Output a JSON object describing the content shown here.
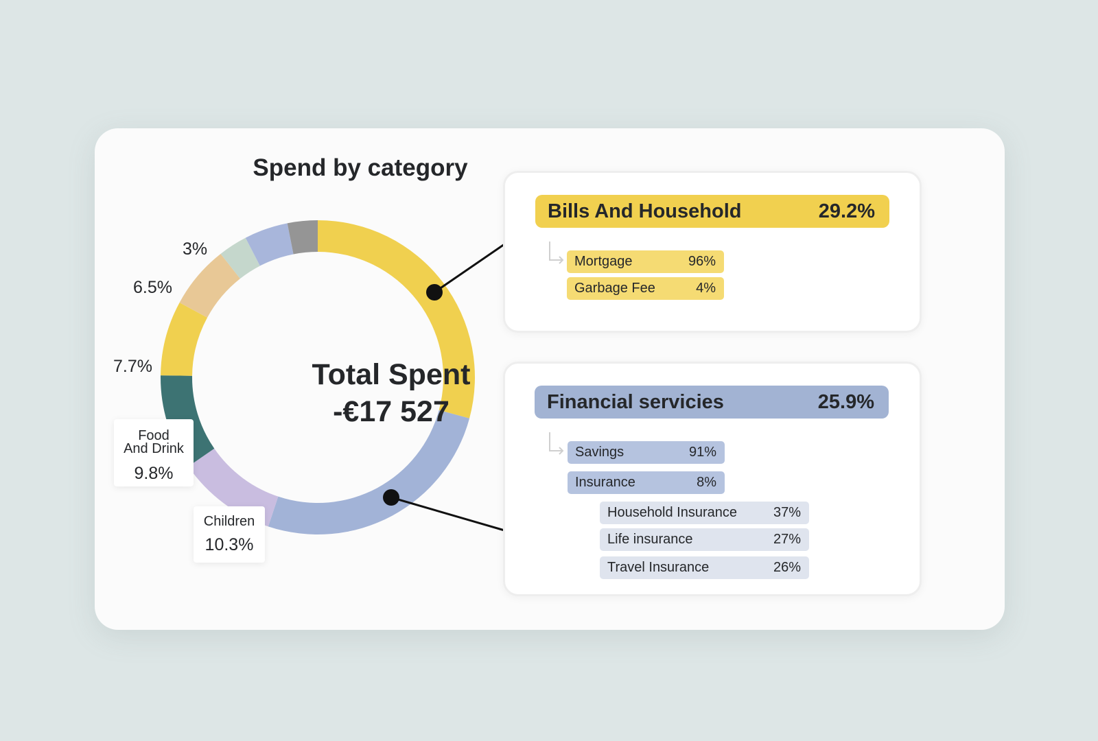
{
  "chart_data": {
    "type": "pie",
    "title": "Spend by category",
    "center": {
      "line1": "Total Spent",
      "line2": "-€17 527"
    },
    "slices": [
      {
        "label": "Bills And Household",
        "value": 29.2,
        "display": "29.2%",
        "color": "#f0d04f"
      },
      {
        "label": "Financial servicies",
        "value": 25.9,
        "display": "25.9%",
        "color": "#a2b3d7"
      },
      {
        "label": "Children",
        "value": 10.3,
        "display": "10.3%",
        "color": "#c9bde0"
      },
      {
        "label": "Food And Drink",
        "value": 9.8,
        "display": "9.8%",
        "color": "#3d7373"
      },
      {
        "label": "",
        "value": 7.7,
        "display": "7.7%",
        "color": "#f0d04f"
      },
      {
        "label": "",
        "value": 6.5,
        "display": "6.5%",
        "color": "#e8c896"
      },
      {
        "label": "",
        "value": 3.0,
        "display": "3%",
        "color": "#c5d7cc"
      },
      {
        "label": "",
        "value": 4.5,
        "display": "",
        "color": "#a8b6db"
      },
      {
        "label": "",
        "value": 3.1,
        "display": "",
        "color": "#959595"
      }
    ]
  },
  "labels": {
    "seven_seven": "7.7%",
    "six_five": "6.5%",
    "three": "3%",
    "food_line1": "Food",
    "food_line2": "And Drink",
    "food_value": "9.8%",
    "children_name": "Children",
    "children_value": "10.3%"
  },
  "bills": {
    "name": "Bills And Household",
    "value": "29.2%",
    "items": [
      {
        "name": "Mortgage",
        "value": "96%"
      },
      {
        "name": "Garbage Fee",
        "value": "4%"
      }
    ]
  },
  "financial": {
    "name": "Financial servicies",
    "value": "25.9%",
    "items": [
      {
        "name": "Savings",
        "value": "91%"
      },
      {
        "name": "Insurance",
        "value": "8%"
      }
    ],
    "insurance_items": [
      {
        "name": "Household Insurance",
        "value": "37%"
      },
      {
        "name": "Life insurance",
        "value": "27%"
      },
      {
        "name": "Travel Insurance",
        "value": "26%"
      }
    ]
  },
  "colors": {
    "background": "#dde6e6",
    "card": "#fbfbfb",
    "yellow": "#f1d04f",
    "blue": "#a2b3d3"
  }
}
